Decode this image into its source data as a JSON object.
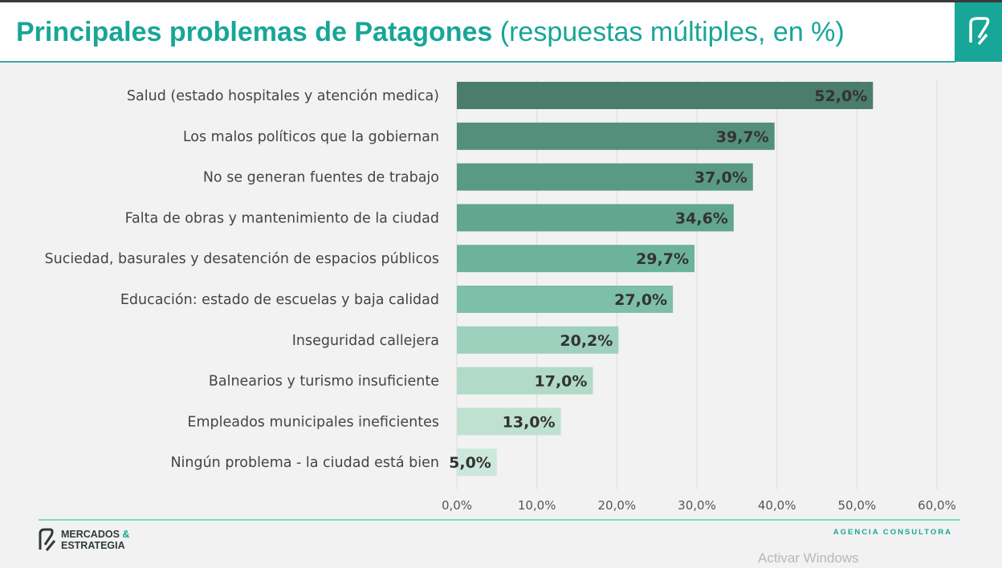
{
  "header": {
    "title_bold": "Principales problemas de Patagones",
    "title_sub": "(respuestas múltiples, en %)"
  },
  "footer": {
    "brand_line1": "MERCADOS",
    "brand_amp": "&",
    "brand_line2": "ESTRATEGIA",
    "tagline": "AGENCIA CONSULTORA",
    "os_watermark": "Activar Windows"
  },
  "chart_data": {
    "type": "bar",
    "orientation": "horizontal",
    "categories": [
      "Salud (estado hospitales y atención medica)",
      "Los malos políticos que la gobiernan",
      "No se generan fuentes de trabajo",
      "Falta de obras y mantenimiento de la ciudad",
      "Suciedad, basurales y desatención de espacios públicos",
      "Educación: estado de escuelas y baja calidad",
      "Inseguridad callejera",
      "Balnearios y turismo insuficiente",
      "Empleados municipales ineficientes",
      "Ningún problema - la ciudad está bien"
    ],
    "values": [
      52.0,
      39.7,
      37.0,
      34.6,
      29.7,
      27.0,
      20.2,
      17.0,
      13.0,
      5.0
    ],
    "data_labels": [
      "52,0%",
      "39,7%",
      "37,0%",
      "34,6%",
      "29,7%",
      "27,0%",
      "20,2%",
      "17,0%",
      "13,0%",
      "5,0%"
    ],
    "xlim": [
      0,
      60
    ],
    "x_ticks": [
      "0,0%",
      "10,0%",
      "20,0%",
      "30,0%",
      "40,0%",
      "50,0%",
      "60,0%"
    ],
    "grid": true,
    "colors": [
      "#4a7d6b",
      "#548f7b",
      "#5a9a85",
      "#62a68f",
      "#6db39b",
      "#7dbfa8",
      "#9dd0bd",
      "#b1dac9",
      "#bfe1d2",
      "#cce8dc"
    ]
  }
}
